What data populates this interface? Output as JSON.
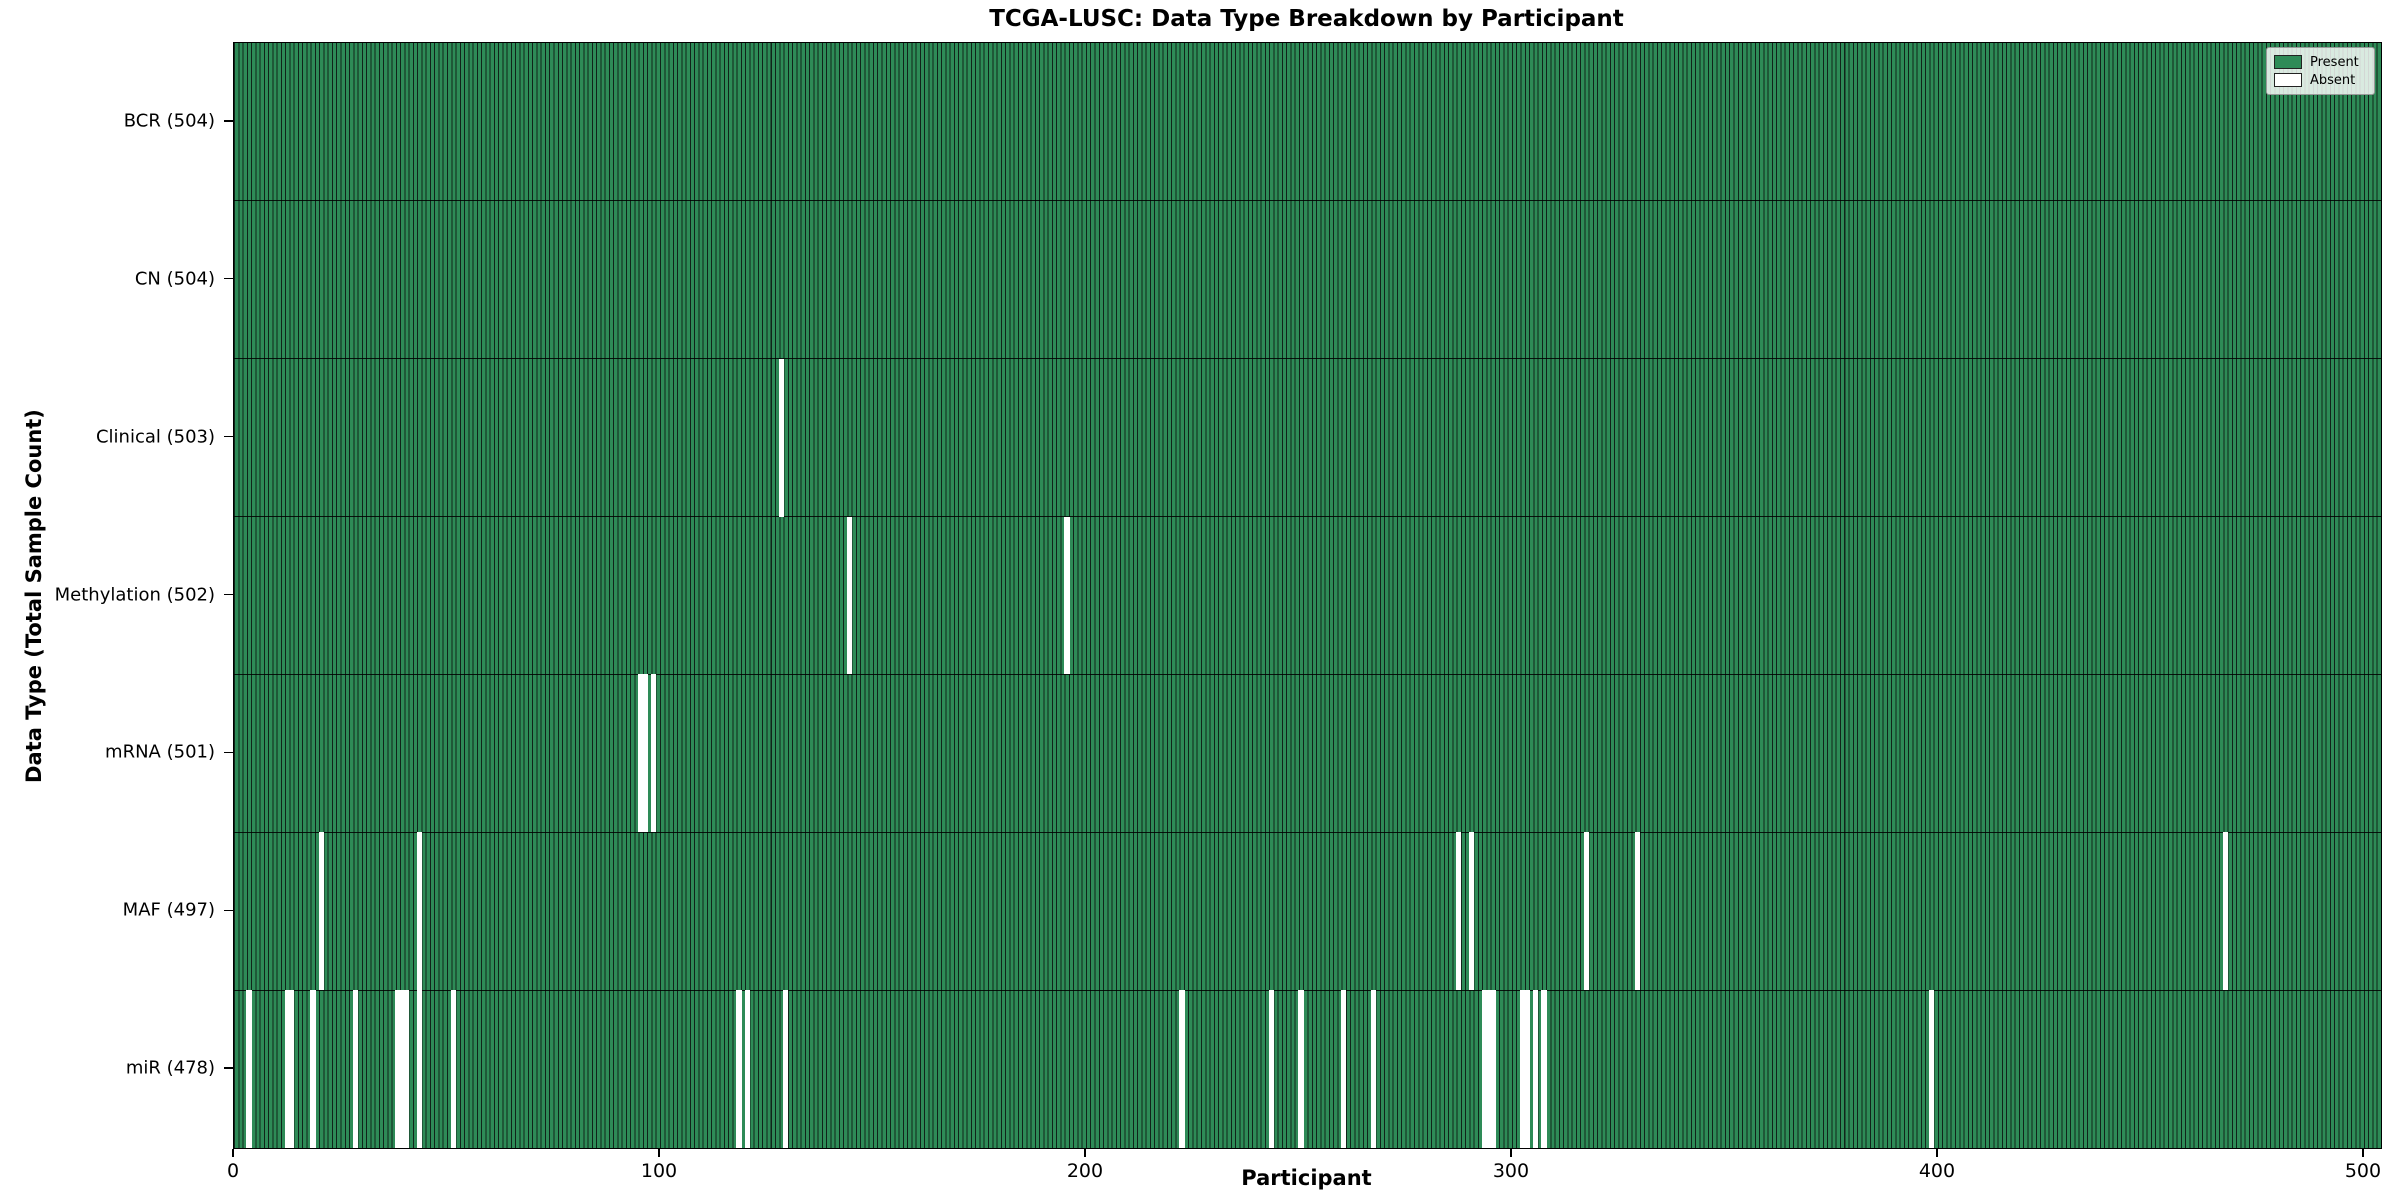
{
  "title": "TCGA-LUSC: Data Type Breakdown by Participant",
  "chart_data": {
    "type": "heatmap",
    "title": "TCGA-LUSC: Data Type Breakdown by Participant",
    "xlabel": "Participant",
    "ylabel": "Data Type (Total Sample Count)",
    "x_ticks": [
      0,
      100,
      200,
      300,
      400,
      500
    ],
    "x_range": [
      0,
      504
    ],
    "n_participants": 504,
    "grid": false,
    "legend": {
      "position": "upper right",
      "present_label": "Present",
      "absent_label": "Absent"
    },
    "colors": {
      "present": "#2e8b57",
      "absent": "#ffffff",
      "bar_edge": "#10241a",
      "plot_border": "#000000"
    },
    "rows": [
      {
        "name": "BCR",
        "label": "BCR (504)",
        "total": 504,
        "absent": []
      },
      {
        "name": "CN",
        "label": "CN (504)",
        "total": 504,
        "absent": []
      },
      {
        "name": "Clinical",
        "label": "Clinical (503)",
        "total": 503,
        "absent": [
          128
        ]
      },
      {
        "name": "Methylation",
        "label": "Methylation (502)",
        "total": 502,
        "absent": [
          144,
          195
        ]
      },
      {
        "name": "mRNA",
        "label": "mRNA (501)",
        "total": 501,
        "absent": [
          95,
          96,
          98
        ]
      },
      {
        "name": "MAF",
        "label": "MAF (497)",
        "total": 497,
        "absent": [
          20,
          43,
          287,
          290,
          317,
          329,
          467
        ]
      },
      {
        "name": "miR",
        "label": "miR (478)",
        "total": 478,
        "absent": [
          3,
          12,
          13,
          18,
          28,
          38,
          39,
          40,
          43,
          51,
          118,
          120,
          129,
          222,
          243,
          250,
          260,
          267,
          293,
          294,
          295,
          302,
          303,
          305,
          307,
          398
        ]
      }
    ]
  }
}
